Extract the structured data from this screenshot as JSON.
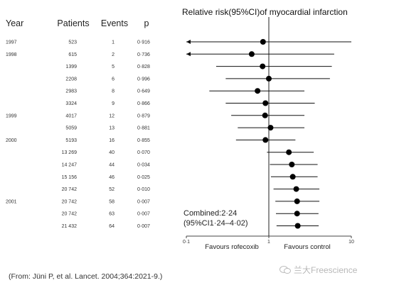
{
  "table": {
    "headers": {
      "year": "Year",
      "patients": "Patients",
      "events": "Events",
      "p": "p"
    },
    "rows": [
      {
        "year": "1997",
        "patients": "523",
        "events": "1",
        "p": "0·916"
      },
      {
        "year": "1998",
        "patients": "615",
        "events": "2",
        "p": "0·736"
      },
      {
        "year": "",
        "patients": "1399",
        "events": "5",
        "p": "0·828"
      },
      {
        "year": "",
        "patients": "2208",
        "events": "6",
        "p": "0·996"
      },
      {
        "year": "",
        "patients": "2983",
        "events": "8",
        "p": "0·649"
      },
      {
        "year": "",
        "patients": "3324",
        "events": "9",
        "p": "0·866"
      },
      {
        "year": "1999",
        "patients": "4017",
        "events": "12",
        "p": "0·879"
      },
      {
        "year": "",
        "patients": "5059",
        "events": "13",
        "p": "0·881"
      },
      {
        "year": "2000",
        "patients": "5193",
        "events": "16",
        "p": "0·855"
      },
      {
        "year": "",
        "patients": "13 269",
        "events": "40",
        "p": "0·070"
      },
      {
        "year": "",
        "patients": "14 247",
        "events": "44",
        "p": "0·034"
      },
      {
        "year": "",
        "patients": "15 156",
        "events": "46",
        "p": "0·025"
      },
      {
        "year": "",
        "patients": "20 742",
        "events": "52",
        "p": "0·010"
      },
      {
        "year": "2001",
        "patients": "20 742",
        "events": "58",
        "p": "0·007"
      },
      {
        "year": "",
        "patients": "20 742",
        "events": "63",
        "p": "0·007"
      },
      {
        "year": "",
        "patients": "21 432",
        "events": "64",
        "p": "0·007"
      }
    ]
  },
  "chart_data": {
    "type": "forest",
    "title": "Relative risk(95%CI)of myocardial infarction",
    "x_scale": "log",
    "xlim": [
      0.1,
      10
    ],
    "x_ticks": [
      {
        "value": 0.1,
        "label": "0·1"
      },
      {
        "value": 1,
        "label": "1"
      },
      {
        "value": 10,
        "label": "10"
      }
    ],
    "reference_value": 1,
    "favour_left": "Favours rofecoxib",
    "favour_right": "Favours control",
    "combined_label": [
      "Combined:2·24",
      "(95%CI1·24–4·02)"
    ],
    "points": [
      {
        "rr": 0.85,
        "lo": 0.1,
        "hi": 10,
        "left_arrow": true
      },
      {
        "rr": 0.62,
        "lo": 0.1,
        "hi": 6.2,
        "left_arrow": true
      },
      {
        "rr": 0.84,
        "lo": 0.23,
        "hi": 5.8
      },
      {
        "rr": 1.0,
        "lo": 0.3,
        "hi": 5.5
      },
      {
        "rr": 0.73,
        "lo": 0.19,
        "hi": 2.7
      },
      {
        "rr": 0.91,
        "lo": 0.3,
        "hi": 3.6
      },
      {
        "rr": 0.9,
        "lo": 0.35,
        "hi": 2.7
      },
      {
        "rr": 1.05,
        "lo": 0.42,
        "hi": 2.7
      },
      {
        "rr": 0.91,
        "lo": 0.4,
        "hi": 2.1
      },
      {
        "rr": 1.75,
        "lo": 0.95,
        "hi": 3.5
      },
      {
        "rr": 1.9,
        "lo": 1.03,
        "hi": 3.9
      },
      {
        "rr": 1.95,
        "lo": 1.06,
        "hi": 3.9
      },
      {
        "rr": 2.15,
        "lo": 1.14,
        "hi": 4.1
      },
      {
        "rr": 2.2,
        "lo": 1.2,
        "hi": 4.1
      },
      {
        "rr": 2.2,
        "lo": 1.22,
        "hi": 4.0
      },
      {
        "rr": 2.24,
        "lo": 1.24,
        "hi": 4.02
      }
    ]
  },
  "citation": "(From: Jüni P, et al. Lancet. 2004;364:2021-9.)",
  "watermark": "兰大Freescience",
  "colors": {
    "ink": "#111111",
    "axis": "#444444",
    "watermark": "#b8b8b8"
  }
}
